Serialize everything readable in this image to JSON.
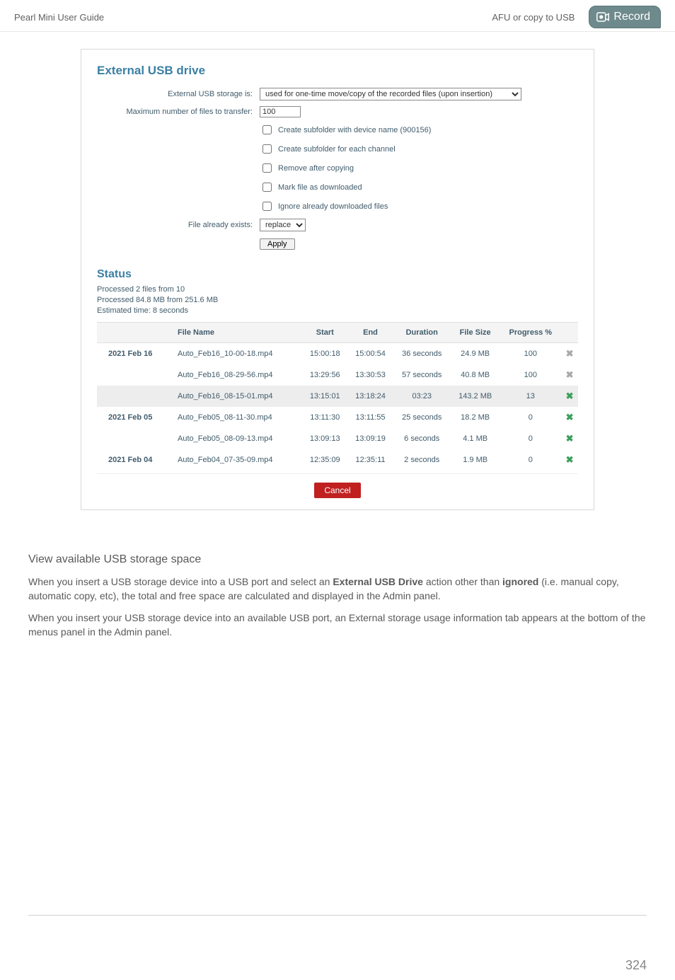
{
  "header": {
    "left": "Pearl Mini User Guide",
    "center": "AFU or copy to USB",
    "badge": "Record"
  },
  "panel": {
    "title": "External USB drive",
    "form": {
      "storage_label": "External USB storage is:",
      "storage_value": "used for one-time move/copy of the recorded files (upon insertion)",
      "max_label": "Maximum number of files to transfer:",
      "max_value": "100",
      "cb1": "Create subfolder with device name (900156)",
      "cb2": "Create subfolder for each channel",
      "cb3": "Remove after copying",
      "cb4": "Mark file as downloaded",
      "cb5": "Ignore already downloaded files",
      "exists_label": "File already exists:",
      "exists_value": "replace",
      "apply": "Apply"
    },
    "status_title": "Status",
    "status_lines": {
      "l1": "Processed 2 files from 10",
      "l2": "Processed 84.8 MB from 251.6 MB",
      "l3": "Estimated time: 8 seconds"
    },
    "columns": {
      "c1": "",
      "c2": "File Name",
      "c3": "Start",
      "c4": "End",
      "c5": "Duration",
      "c6": "File Size",
      "c7": "Progress %",
      "c8": ""
    },
    "rows": [
      {
        "hl": false,
        "date": "2021 Feb 16",
        "name": "Auto_Feb16_10-00-18.mp4",
        "start": "15:00:18",
        "end": "15:00:54",
        "dur": "36 seconds",
        "size": "24.9 MB",
        "prog": "100",
        "xcls": "x-gray"
      },
      {
        "hl": false,
        "date": "",
        "name": "Auto_Feb16_08-29-56.mp4",
        "start": "13:29:56",
        "end": "13:30:53",
        "dur": "57 seconds",
        "size": "40.8 MB",
        "prog": "100",
        "xcls": "x-gray"
      },
      {
        "hl": true,
        "date": "",
        "name": "Auto_Feb16_08-15-01.mp4",
        "start": "13:15:01",
        "end": "13:18:24",
        "dur": "03:23",
        "size": "143.2 MB",
        "prog": "13",
        "xcls": "x-green"
      },
      {
        "hl": false,
        "date": "2021 Feb 05",
        "name": "Auto_Feb05_08-11-30.mp4",
        "start": "13:11:30",
        "end": "13:11:55",
        "dur": "25 seconds",
        "size": "18.2 MB",
        "prog": "0",
        "xcls": "x-green"
      },
      {
        "hl": false,
        "date": "",
        "name": "Auto_Feb05_08-09-13.mp4",
        "start": "13:09:13",
        "end": "13:09:19",
        "dur": "6 seconds",
        "size": "4.1 MB",
        "prog": "0",
        "xcls": "x-green"
      },
      {
        "hl": false,
        "date": "2021 Feb 04",
        "name": "Auto_Feb04_07-35-09.mp4",
        "start": "12:35:09",
        "end": "12:35:11",
        "dur": "2 seconds",
        "size": "1.9 MB",
        "prog": "0",
        "xcls": "x-green"
      }
    ],
    "cancel": "Cancel"
  },
  "body": {
    "h3": "View available USB storage space",
    "p1a": "When you insert a USB storage device into a USB port and select an ",
    "p1b": "External USB Drive",
    "p1c": " action other than ",
    "p1d": "ignored",
    "p1e": " (i.e. manual copy, automatic copy, etc), the total and free space are calculated and displayed in the Admin panel.",
    "p2": "When you insert your USB storage device into an available USB port, an External storage usage information tab appears at the bottom of the menus panel in the Admin panel."
  },
  "page_number": "324"
}
